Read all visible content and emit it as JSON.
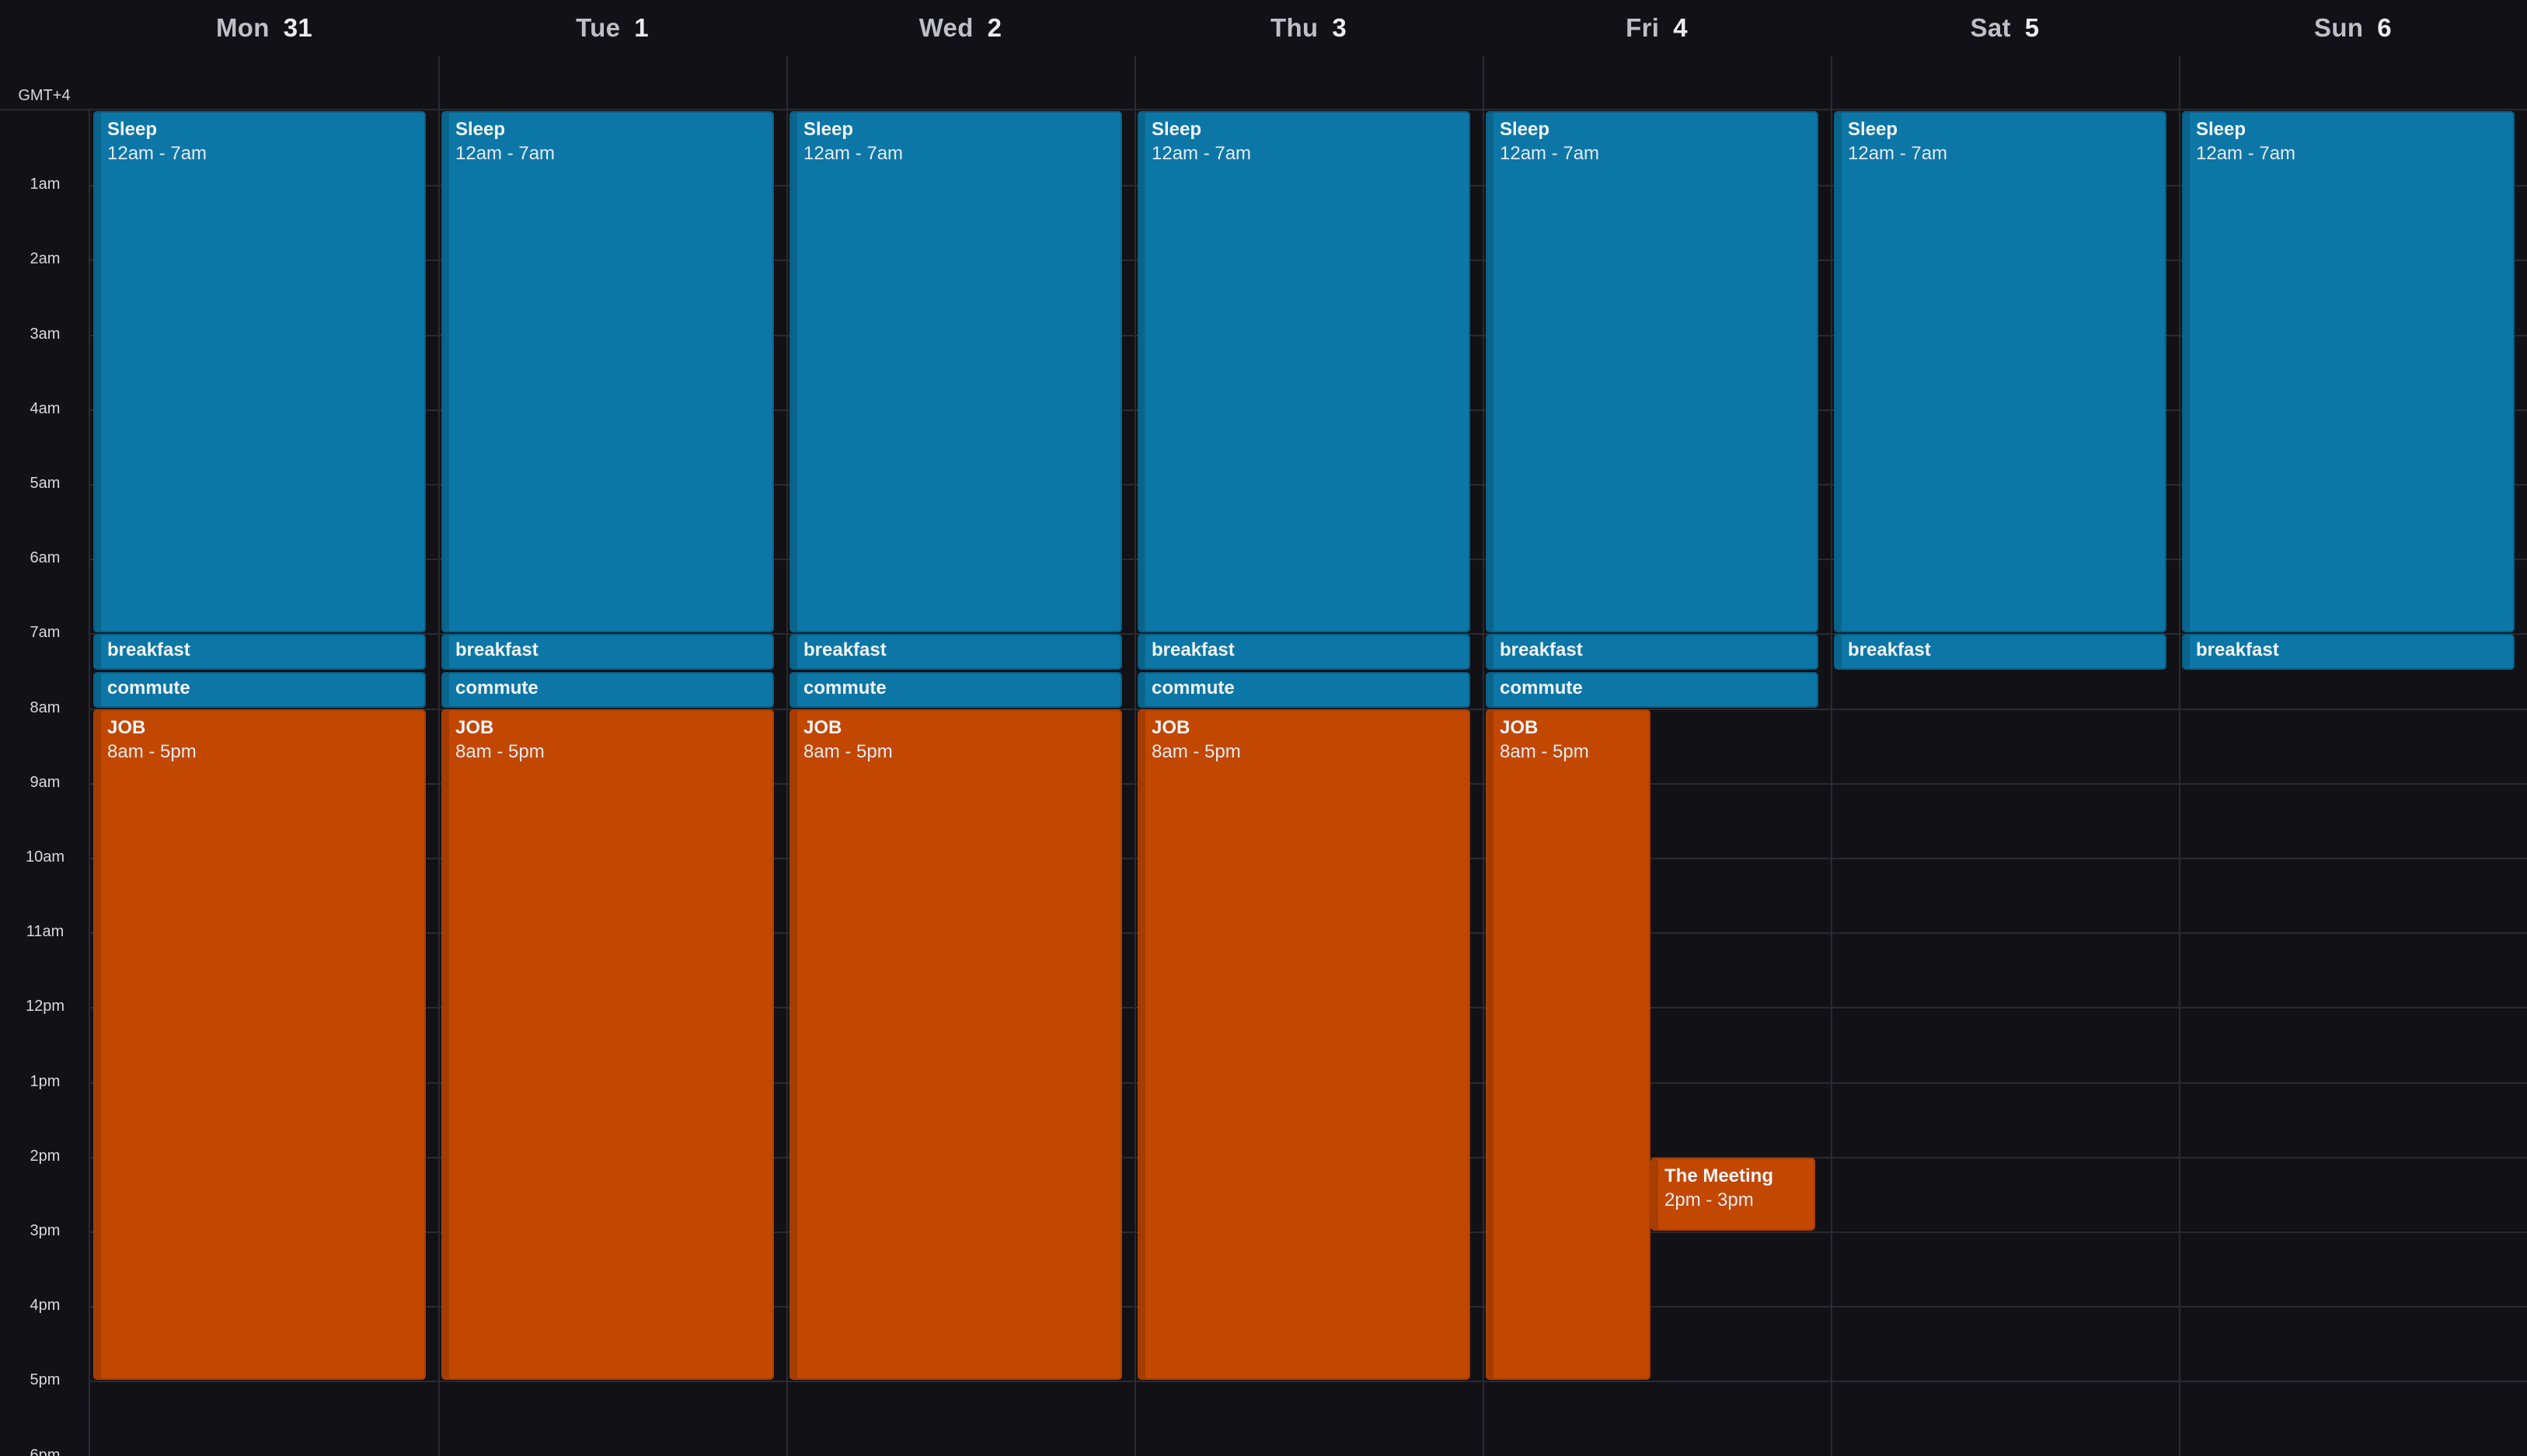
{
  "timezone_label": "GMT+4",
  "days": [
    {
      "dow": "Mon",
      "num": "31"
    },
    {
      "dow": "Tue",
      "num": "1"
    },
    {
      "dow": "Wed",
      "num": "2"
    },
    {
      "dow": "Thu",
      "num": "3"
    },
    {
      "dow": "Fri",
      "num": "4"
    },
    {
      "dow": "Sat",
      "num": "5"
    },
    {
      "dow": "Sun",
      "num": "6"
    }
  ],
  "hours": [
    "1am",
    "2am",
    "3am",
    "4am",
    "5am",
    "6am",
    "7am",
    "8am",
    "9am",
    "10am",
    "11am",
    "12pm",
    "1pm",
    "2pm",
    "3pm",
    "4pm",
    "5pm",
    "6pm"
  ],
  "colors": {
    "blue": "#0c77a6",
    "orange": "#c24700",
    "background": "#111116",
    "gridline": "#2a2a31"
  },
  "events": [
    {
      "day": 0,
      "title": "Sleep",
      "time": "12am - 7am",
      "start": 0,
      "end": 7,
      "color": "blue"
    },
    {
      "day": 0,
      "title": "breakfast",
      "start": 7,
      "end": 7.5,
      "color": "blue"
    },
    {
      "day": 0,
      "title": "commute",
      "start": 7.5,
      "end": 8,
      "color": "blue"
    },
    {
      "day": 0,
      "title": "JOB",
      "time": "8am - 5pm",
      "start": 8,
      "end": 17,
      "color": "orange"
    },
    {
      "day": 1,
      "title": "Sleep",
      "time": "12am - 7am",
      "start": 0,
      "end": 7,
      "color": "blue"
    },
    {
      "day": 1,
      "title": "breakfast",
      "start": 7,
      "end": 7.5,
      "color": "blue"
    },
    {
      "day": 1,
      "title": "commute",
      "start": 7.5,
      "end": 8,
      "color": "blue"
    },
    {
      "day": 1,
      "title": "JOB",
      "time": "8am - 5pm",
      "start": 8,
      "end": 17,
      "color": "orange"
    },
    {
      "day": 2,
      "title": "Sleep",
      "time": "12am - 7am",
      "start": 0,
      "end": 7,
      "color": "blue"
    },
    {
      "day": 2,
      "title": "breakfast",
      "start": 7,
      "end": 7.5,
      "color": "blue"
    },
    {
      "day": 2,
      "title": "commute",
      "start": 7.5,
      "end": 8,
      "color": "blue"
    },
    {
      "day": 2,
      "title": "JOB",
      "time": "8am - 5pm",
      "start": 8,
      "end": 17,
      "color": "orange"
    },
    {
      "day": 3,
      "title": "Sleep",
      "time": "12am - 7am",
      "start": 0,
      "end": 7,
      "color": "blue"
    },
    {
      "day": 3,
      "title": "breakfast",
      "start": 7,
      "end": 7.5,
      "color": "blue"
    },
    {
      "day": 3,
      "title": "commute",
      "start": 7.5,
      "end": 8,
      "color": "blue"
    },
    {
      "day": 3,
      "title": "JOB",
      "time": "8am - 5pm",
      "start": 8,
      "end": 17,
      "color": "orange"
    },
    {
      "day": 4,
      "title": "Sleep",
      "time": "12am - 7am",
      "start": 0,
      "end": 7,
      "color": "blue"
    },
    {
      "day": 4,
      "title": "breakfast",
      "start": 7,
      "end": 7.5,
      "color": "blue"
    },
    {
      "day": 4,
      "title": "commute",
      "start": 7.5,
      "end": 8,
      "color": "blue"
    },
    {
      "day": 4,
      "title": "JOB",
      "time": "8am - 5pm",
      "start": 8,
      "end": 17,
      "color": "orange",
      "slot": "left"
    },
    {
      "day": 4,
      "title": "The Meeting",
      "time": "2pm - 3pm",
      "start": 14,
      "end": 15,
      "color": "orange",
      "slot": "right"
    },
    {
      "day": 5,
      "title": "Sleep",
      "time": "12am - 7am",
      "start": 0,
      "end": 7,
      "color": "blue"
    },
    {
      "day": 5,
      "title": "breakfast",
      "start": 7,
      "end": 7.5,
      "color": "blue"
    },
    {
      "day": 6,
      "title": "Sleep",
      "time": "12am - 7am",
      "start": 0,
      "end": 7,
      "color": "blue"
    },
    {
      "day": 6,
      "title": "breakfast",
      "start": 7,
      "end": 7.5,
      "color": "blue"
    }
  ]
}
